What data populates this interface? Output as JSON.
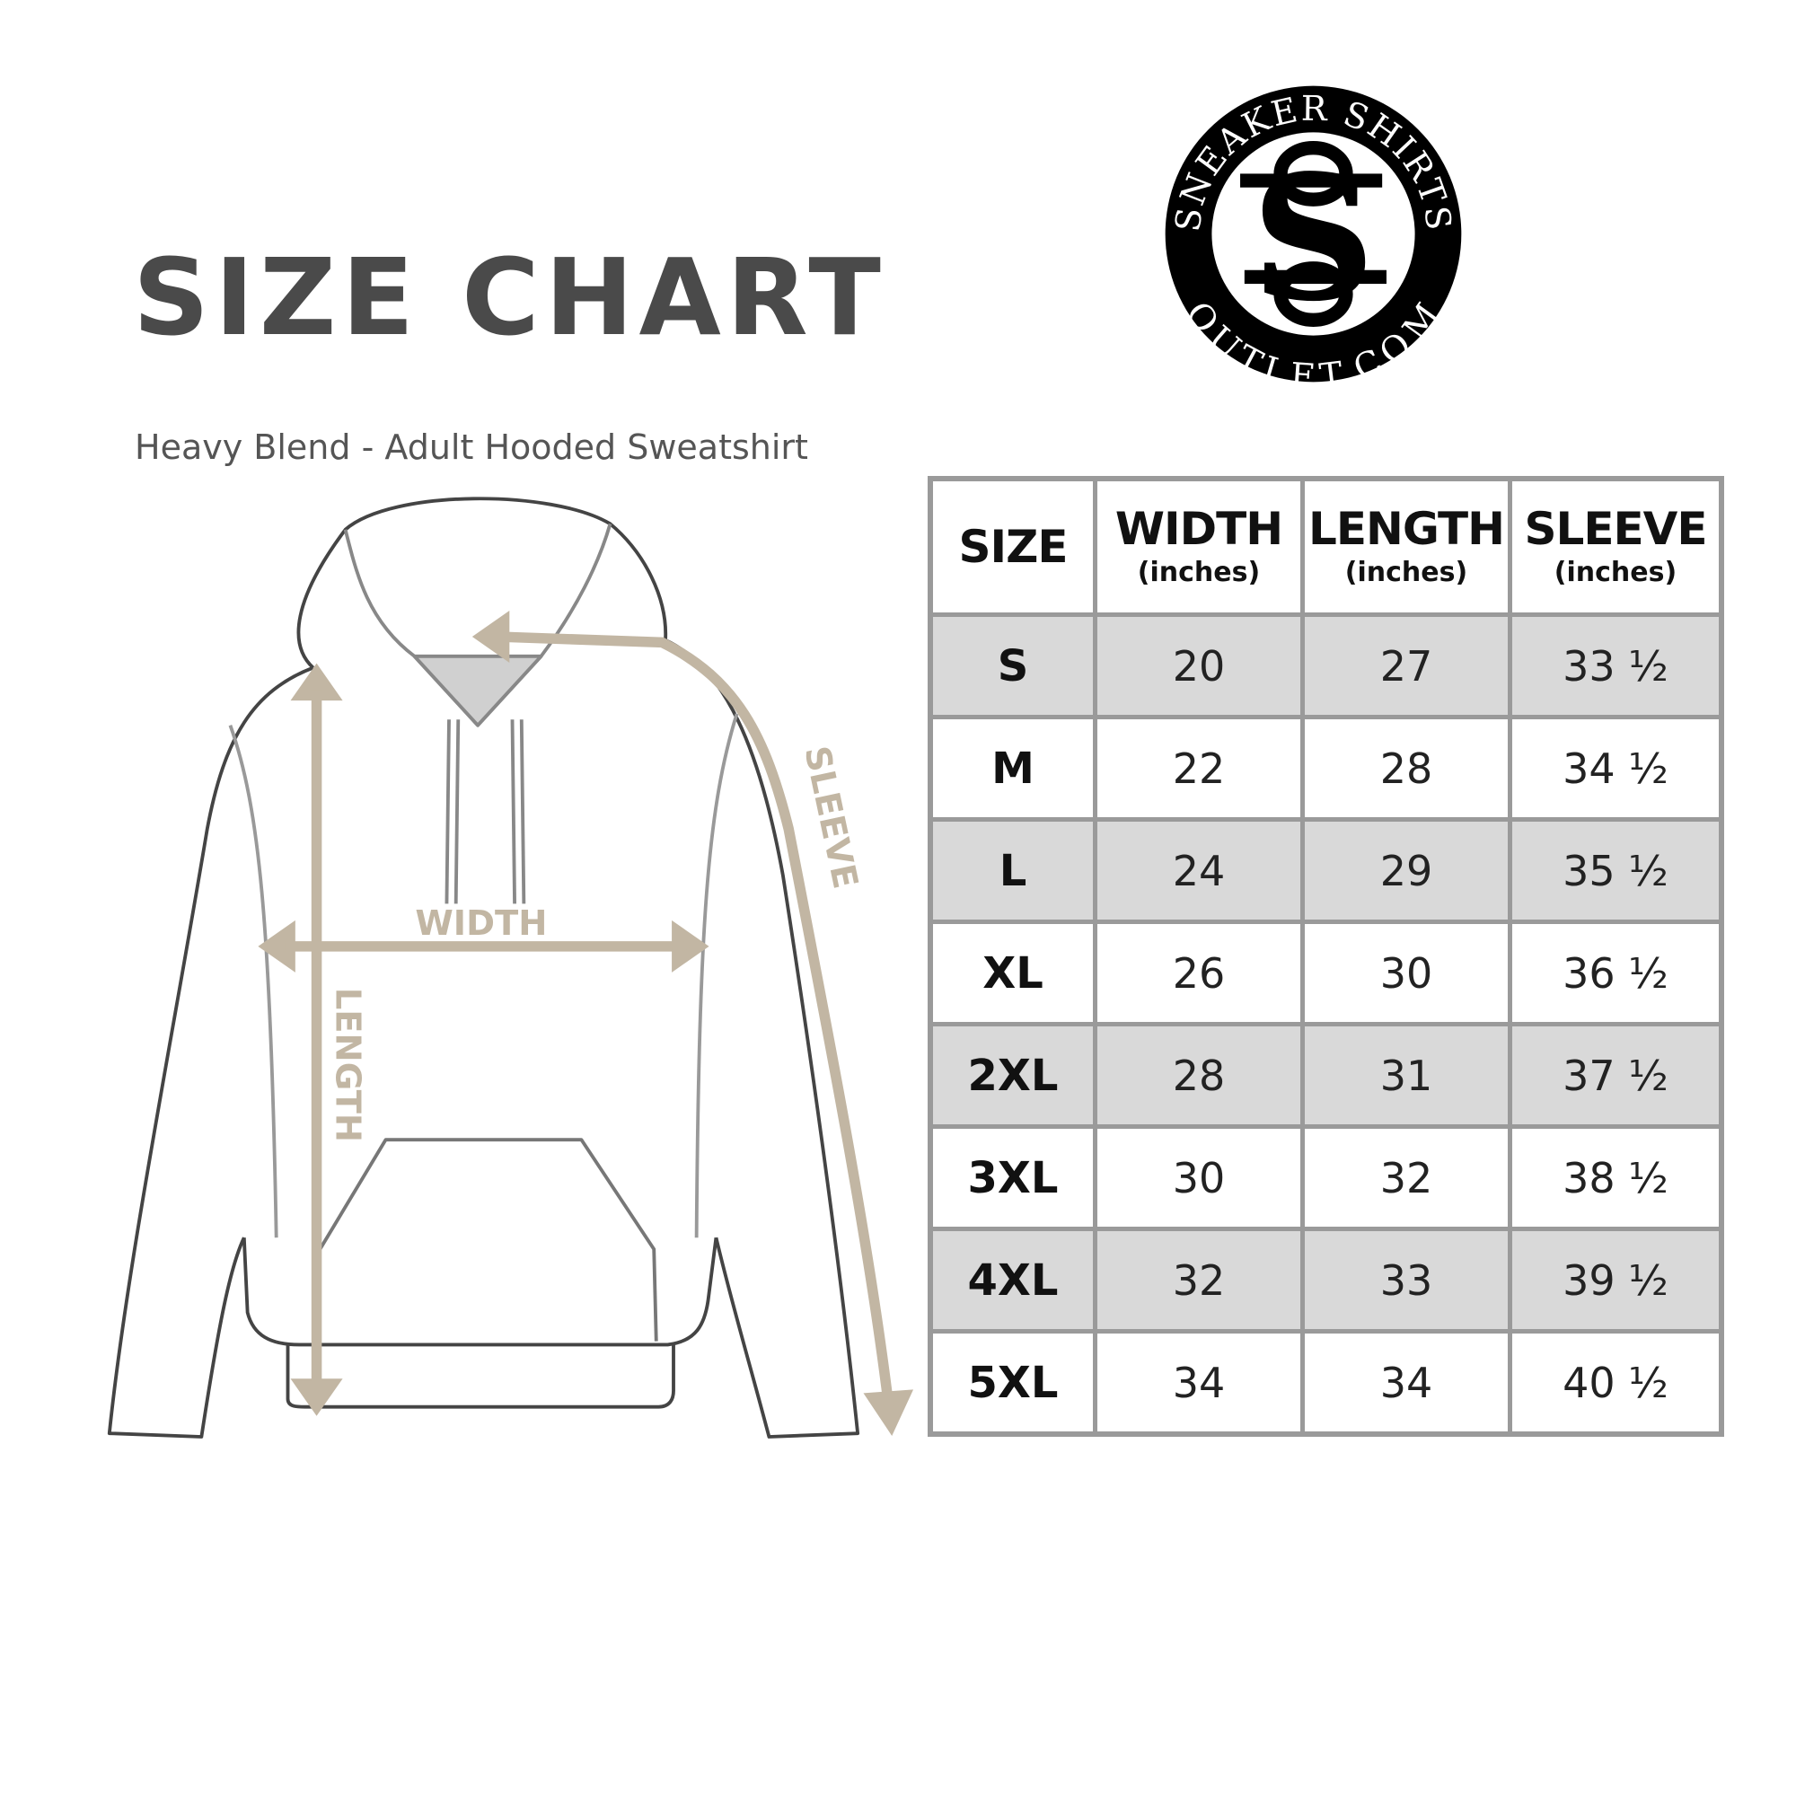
{
  "title": "SIZE CHART",
  "subtitle": "Heavy Blend - Adult Hooded Sweatshirt",
  "logo": {
    "top_text": "SNEAKER SHIRTS",
    "bottom_text": "OUTLET.COM",
    "monogram": "SS"
  },
  "diagram": {
    "width_label": "WIDTH",
    "length_label": "LENGTH",
    "sleeve_label": "SLEEVE",
    "arrow_color": "#c2b6a3"
  },
  "table": {
    "headers": [
      {
        "label": "SIZE",
        "unit": ""
      },
      {
        "label": "WIDTH",
        "unit": "(inches)"
      },
      {
        "label": "LENGTH",
        "unit": "(inches)"
      },
      {
        "label": "SLEEVE",
        "unit": "(inches)"
      }
    ],
    "rows": [
      [
        "S",
        "20",
        "27",
        "33 ½"
      ],
      [
        "M",
        "22",
        "28",
        "34 ½"
      ],
      [
        "L",
        "24",
        "29",
        "35 ½"
      ],
      [
        "XL",
        "26",
        "30",
        "36 ½"
      ],
      [
        "2XL",
        "28",
        "31",
        "37 ½"
      ],
      [
        "3XL",
        "30",
        "32",
        "38 ½"
      ],
      [
        "4XL",
        "32",
        "33",
        "39 ½"
      ],
      [
        "5XL",
        "34",
        "34",
        "40 ½"
      ]
    ],
    "stripe_color": "#d9d9d9",
    "border_color": "#9a9a9a"
  }
}
